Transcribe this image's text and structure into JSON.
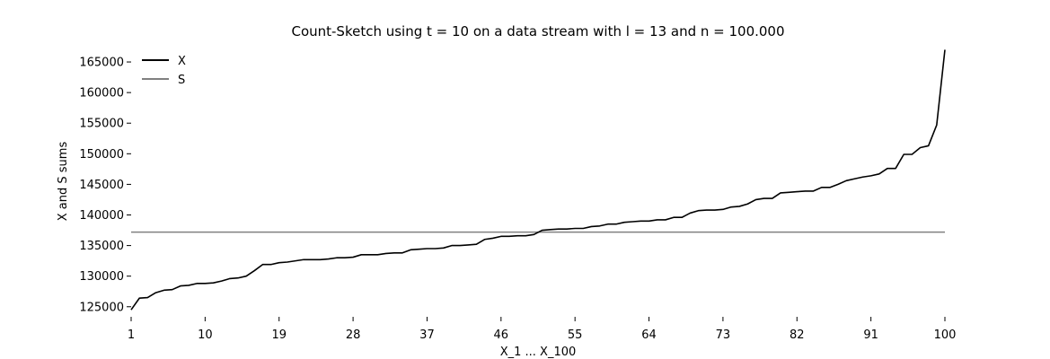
{
  "chart_data": {
    "type": "line",
    "title": "Count-Sketch using t = 10 on a data stream with l = 13 and n = 100.000",
    "xlabel": "X_1 ... X_100",
    "ylabel": "X and S sums",
    "xlim": [
      1,
      100
    ],
    "ylim": [
      123500,
      167500
    ],
    "xticks": [
      1,
      10,
      19,
      28,
      37,
      46,
      55,
      64,
      73,
      82,
      91,
      100
    ],
    "yticks": [
      125000,
      130000,
      135000,
      140000,
      145000,
      150000,
      155000,
      160000,
      165000
    ],
    "grid": false,
    "legend_position": "top-left",
    "series": [
      {
        "name": "X",
        "color": "#000000",
        "values": [
          124500,
          126400,
          126500,
          127300,
          127700,
          127800,
          128400,
          128500,
          128800,
          128800,
          128900,
          129200,
          129600,
          129700,
          130000,
          130900,
          131900,
          131900,
          132200,
          132300,
          132500,
          132700,
          132700,
          132700,
          132800,
          133000,
          133000,
          133100,
          133500,
          133500,
          133500,
          133700,
          133800,
          133800,
          134300,
          134400,
          134500,
          134500,
          134600,
          135000,
          135000,
          135100,
          135200,
          136000,
          136200,
          136500,
          136500,
          136600,
          136600,
          136800,
          137500,
          137600,
          137700,
          137700,
          137800,
          137800,
          138100,
          138200,
          138500,
          138500,
          138800,
          138900,
          139000,
          139000,
          139200,
          139200,
          139600,
          139600,
          140300,
          140700,
          140800,
          140800,
          140900,
          141300,
          141400,
          141800,
          142500,
          142700,
          142700,
          143600,
          143700,
          143800,
          143900,
          143900,
          144500,
          144500,
          145000,
          145600,
          145900,
          146200,
          146400,
          146700,
          147600,
          147600,
          149900,
          149900,
          151000,
          151300,
          154700,
          167000
        ]
      },
      {
        "name": "S",
        "color": "#808080",
        "values": [
          137200,
          137200
        ]
      }
    ]
  }
}
